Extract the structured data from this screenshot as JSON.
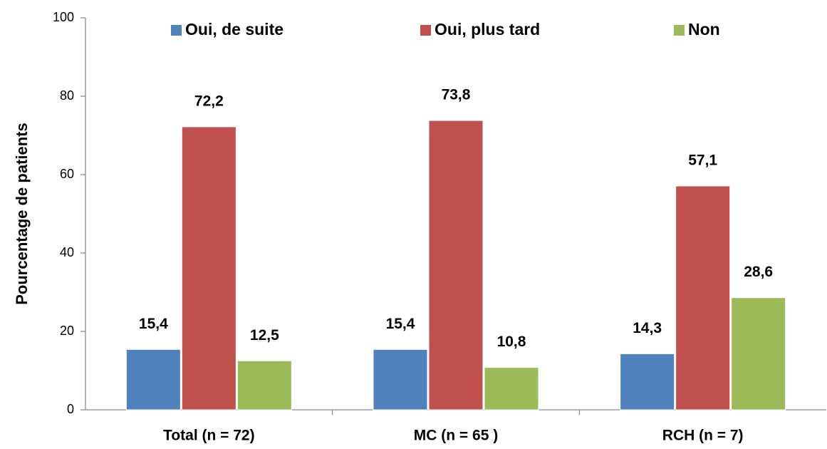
{
  "chart_data": {
    "type": "bar",
    "y_label": "Pourcentage de patients",
    "categories": [
      "Total (n = 72)",
      "MC (n = 65 )",
      "RCH (n = 7)"
    ],
    "series": [
      {
        "name": "Oui, de suite",
        "color": "#4f81bd",
        "values": [
          15.4,
          15.4,
          14.3
        ],
        "value_labels": [
          "15,4",
          "15,4",
          "14,3"
        ]
      },
      {
        "name": "Oui, plus tard",
        "color": "#c0504d",
        "values": [
          72.2,
          73.8,
          57.1
        ],
        "value_labels": [
          "72,2",
          "73,8",
          "57,1"
        ]
      },
      {
        "name": "Non",
        "color": "#9bbb59",
        "values": [
          12.5,
          10.8,
          28.6
        ],
        "value_labels": [
          "12,5",
          "10,8",
          "28,6"
        ]
      }
    ],
    "ylim": [
      0,
      100
    ],
    "yticks": [
      0,
      20,
      40,
      60,
      80,
      100
    ],
    "grid": false,
    "legend": "top"
  }
}
